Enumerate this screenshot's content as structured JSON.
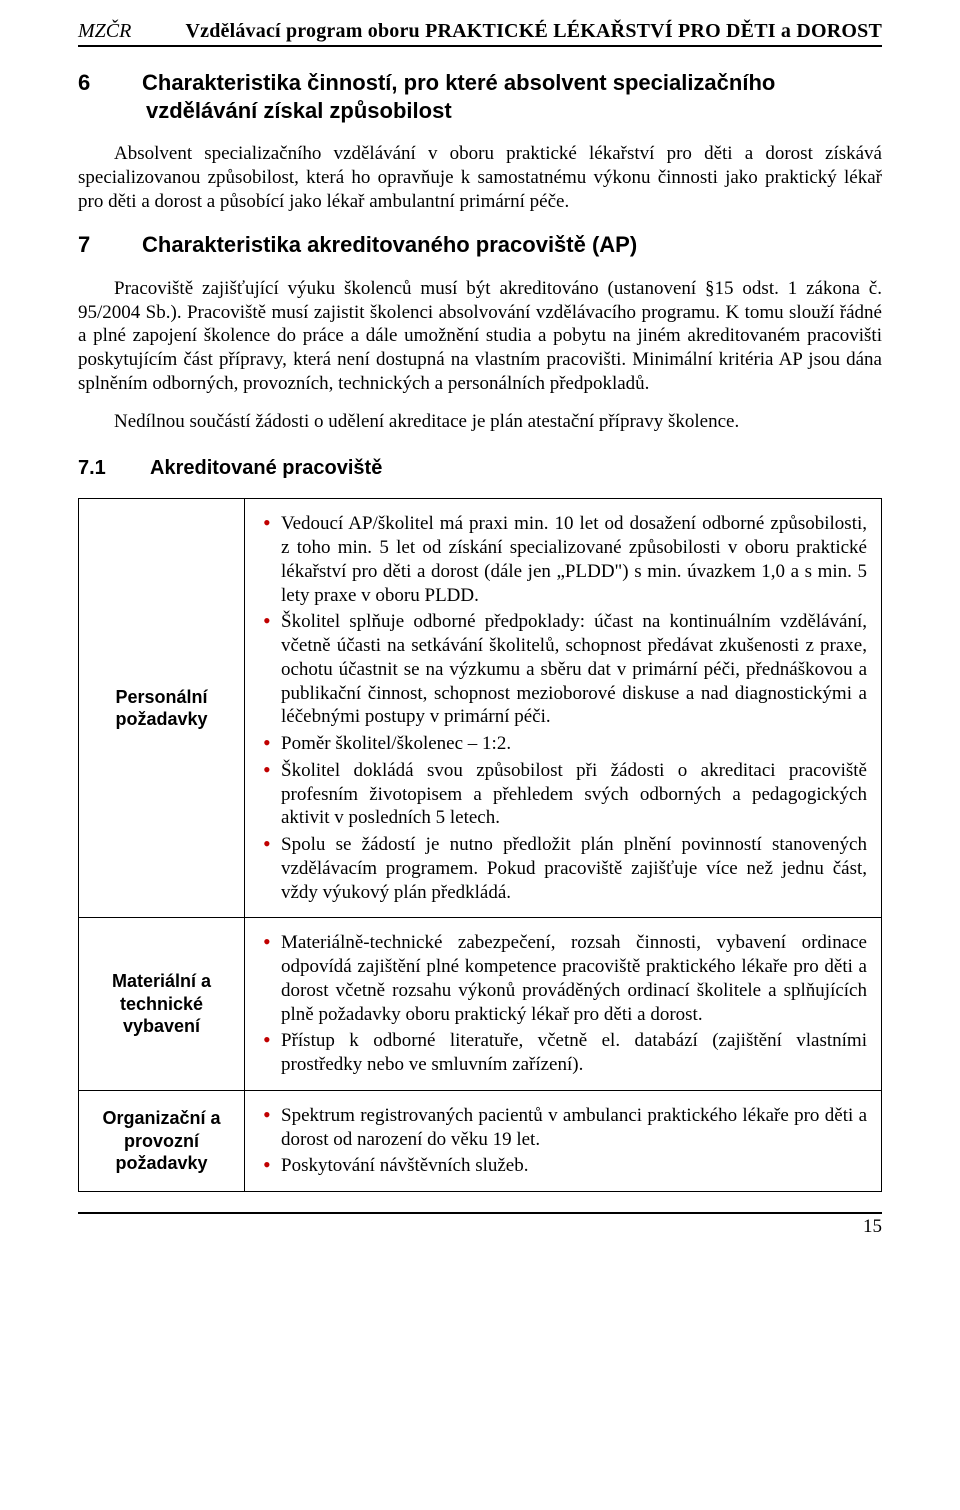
{
  "header": {
    "org": "MZČR",
    "title": "Vzdělávací program oboru PRAKTICKÉ LÉKAŘSTVÍ PRO DĚTI a DOROST"
  },
  "section6": {
    "num": "6",
    "title": "Charakteristika činností, pro které absolvent specializačního vzdělávání získal způsobilost",
    "p1": "Absolvent specializačního vzdělávání v oboru praktické lékařství pro děti a dorost získává specializovanou způsobilost, která ho opravňuje k samostatnému výkonu činnosti jako praktický lékař pro děti a dorost a působící jako lékař ambulantní primární péče."
  },
  "section7": {
    "num": "7",
    "title": "Charakteristika akreditovaného pracoviště (AP)",
    "p1": "Pracoviště zajišťující výuku školenců musí být akreditováno (ustanovení §15 odst. 1 zákona č. 95/2004 Sb.). Pracoviště musí zajistit školenci absolvování vzdělávacího programu. K tomu slouží řádné a plné zapojení školence do práce a dále umožnění studia a pobytu na jiném akreditovaném pracovišti poskytujícím část přípravy, která není dostupná na vlastním pracovišti. Minimální kritéria AP jsou dána splněním odborných, provozních, technických a personálních předpokladů.",
    "p2": "Nedílnou součástí žádosti o udělení akreditace je plán atestační přípravy školence."
  },
  "sub71": {
    "num": "7.1",
    "title": "Akreditované pracoviště"
  },
  "table": {
    "rows": [
      {
        "label": "Personální požadavky",
        "items": [
          "Vedoucí AP/školitel má praxi min. 10 let od dosažení odborné způsobilosti, z toho min. 5 let od získání specializované způsobilosti v oboru praktické lékařství pro děti a dorost (dále jen „PLDD\") s min. úvazkem 1,0 a s min. 5 lety praxe v oboru PLDD.",
          "Školitel splňuje odborné předpoklady: účast na kontinuálním vzdělávání, včetně účasti na setkávání školitelů, schopnost předávat zkušenosti z praxe, ochotu účastnit se na výzkumu a sběru dat v primární péči, přednáškovou a publikační činnost, schopnost mezioborové diskuse a nad diagnostickými a léčebnými postupy v primární péči.",
          "Poměr školitel/školenec – 1:2.",
          "Školitel dokládá svou způsobilost při žádosti o akreditaci pracoviště profesním životopisem a přehledem svých odborných a pedagogických aktivit v posledních 5 letech.",
          "Spolu se žádostí je nutno předložit plán plnění povinností stanovených vzdělávacím programem. Pokud pracoviště zajišťuje více než jednu část, vždy výukový plán předkládá."
        ]
      },
      {
        "label": "Materiální a technické vybavení",
        "items": [
          "Materiálně-technické zabezpečení, rozsah činnosti, vybavení ordinace odpovídá zajištění plné kompetence pracoviště praktického lékaře pro děti a dorost včetně rozsahu výkonů prováděných ordinací školitele a splňujících plně požadavky oboru praktický lékař pro děti a dorost.",
          "Přístup k odborné literatuře, včetně el. databází (zajištění vlastními prostředky nebo ve smluvním zařízení)."
        ]
      },
      {
        "label": "Organizační a provozní požadavky",
        "items": [
          "Spektrum registrovaných pacientů v ambulanci praktického lékaře pro děti a dorost od narození do věku 19 let.",
          "Poskytování návštěvních služeb."
        ]
      }
    ]
  },
  "pageNumber": "15",
  "style": {
    "bullet_color": "#c00000",
    "border_color": "#000000",
    "body_font": "Times New Roman",
    "heading_font": "Arial"
  }
}
